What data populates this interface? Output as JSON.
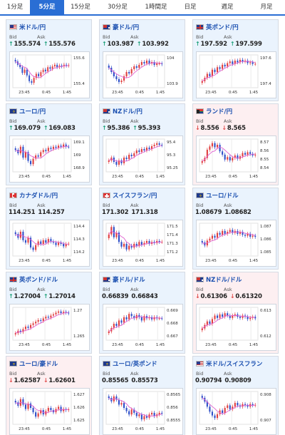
{
  "tabs": [
    "1分足",
    "5分足",
    "15分足",
    "30分足",
    "1時間足",
    "日足",
    "週足",
    "月足"
  ],
  "active_tab": 1,
  "labels": {
    "bid": "Bid",
    "ask": "Ask"
  },
  "colors": {
    "up_arrow": "#1da07a",
    "down_arrow": "#e04848",
    "up_bg": "#eaf3fd",
    "down_bg": "#fdeff1",
    "accent": "#2a6ed4",
    "candle_up": "#e04040",
    "candle_down": "#3050c8",
    "ma_line": "#e060d0"
  },
  "cards": [
    {
      "pair": "米ドル/円",
      "flag": "us",
      "trend": "up",
      "bid": "155.574",
      "ask": "155.576",
      "ticks": [
        "155.6",
        "155.4"
      ],
      "times": [
        "23:45",
        "0:45",
        "1:45"
      ],
      "chart_data": {
        "type": "candlestick",
        "closes": [
          155.62,
          155.58,
          155.55,
          155.48,
          155.52,
          155.45,
          155.38,
          155.36,
          155.42,
          155.47,
          155.44,
          155.49,
          155.52,
          155.5,
          155.55,
          155.53,
          155.56,
          155.58,
          155.55,
          155.57,
          155.56,
          155.58,
          155.57,
          155.575
        ],
        "ylim": [
          155.3,
          155.7
        ]
      }
    },
    {
      "pair": "豪ドル/円",
      "flag": "au",
      "trend": "up",
      "bid": "103.987",
      "ask": "103.992",
      "ticks": [
        "104",
        "103.9"
      ],
      "times": [
        "23:45",
        "0:45",
        "1:45"
      ],
      "chart_data": {
        "type": "candlestick",
        "closes": [
          103.96,
          103.93,
          103.9,
          103.88,
          103.86,
          103.87,
          103.9,
          103.93,
          103.92,
          103.95,
          103.97,
          103.96,
          103.98,
          104.0,
          103.99,
          104.01,
          103.99,
          104.0,
          103.98,
          103.99,
          103.99,
          103.985
        ],
        "ylim": [
          103.82,
          104.05
        ]
      }
    },
    {
      "pair": "英ポンド/円",
      "flag": "gb",
      "trend": "up",
      "bid": "197.592",
      "ask": "197.599",
      "ticks": [
        "197.6",
        "197.4"
      ],
      "times": [
        "23:45",
        "0:45",
        "1:45"
      ],
      "chart_data": {
        "type": "candlestick",
        "closes": [
          197.38,
          197.42,
          197.47,
          197.44,
          197.52,
          197.49,
          197.55,
          197.53,
          197.58,
          197.56,
          197.6,
          197.62,
          197.59,
          197.63,
          197.61,
          197.64,
          197.62,
          197.63,
          197.6,
          197.61,
          197.59,
          197.592
        ],
        "ylim": [
          197.3,
          197.7
        ]
      }
    },
    {
      "pair": "ユーロ/円",
      "flag": "eu",
      "trend": "up",
      "bid": "169.079",
      "ask": "169.083",
      "ticks": [
        "169.1",
        "169",
        "168.9"
      ],
      "times": [
        "23:45",
        "0:45",
        "1:45"
      ],
      "chart_data": {
        "type": "candlestick",
        "closes": [
          169.05,
          169.02,
          169.08,
          168.98,
          169.03,
          168.95,
          168.92,
          168.97,
          169.0,
          168.99,
          169.03,
          169.05,
          169.04,
          169.07,
          169.06,
          169.08,
          169.07,
          169.09,
          169.08,
          169.1,
          169.08,
          169.079
        ],
        "ylim": [
          168.85,
          169.15
        ]
      }
    },
    {
      "pair": "NZドル/円",
      "flag": "nz",
      "trend": "up",
      "bid": "95.386",
      "ask": "95.393",
      "ticks": [
        "95.4",
        "95.3",
        "95.25"
      ],
      "times": [
        "23:45",
        "0:45",
        "1:45"
      ],
      "chart_data": {
        "type": "candlestick",
        "closes": [
          95.28,
          95.3,
          95.27,
          95.25,
          95.28,
          95.26,
          95.3,
          95.29,
          95.32,
          95.31,
          95.33,
          95.35,
          95.34,
          95.36,
          95.35,
          95.37,
          95.36,
          95.38,
          95.39,
          95.4,
          95.39,
          95.386
        ],
        "ylim": [
          95.2,
          95.43
        ]
      }
    },
    {
      "pair": "ランド/円",
      "flag": "za",
      "trend": "down",
      "bid": "8.556",
      "ask": "8.565",
      "ticks": [
        "8.57",
        "8.56",
        "8.55",
        "8.54"
      ],
      "times": [
        "23:45",
        "0:45",
        "1:45"
      ],
      "chart_data": {
        "type": "candlestick",
        "closes": [
          8.548,
          8.552,
          8.562,
          8.566,
          8.57,
          8.565,
          8.568,
          8.56,
          8.556,
          8.55,
          8.553,
          8.549,
          8.552,
          8.555,
          8.551,
          8.554,
          8.558,
          8.556,
          8.559,
          8.557,
          8.555,
          8.556
        ],
        "ylim": [
          8.535,
          8.575
        ]
      }
    },
    {
      "pair": "カナダドル/円",
      "flag": "ca",
      "trend": "none",
      "bid": "114.251",
      "ask": "114.257",
      "ticks": [
        "114.4",
        "114.3",
        "114.2"
      ],
      "times": [
        "23:45",
        "0:45",
        "1:45"
      ],
      "chart_data": {
        "type": "candlestick",
        "closes": [
          114.33,
          114.3,
          114.35,
          114.28,
          114.26,
          114.3,
          114.22,
          114.2,
          114.24,
          114.27,
          114.25,
          114.28,
          114.26,
          114.29,
          114.27,
          114.26,
          114.24,
          114.26,
          114.25,
          114.23,
          114.25,
          114.251
        ],
        "ylim": [
          114.15,
          114.42
        ]
      }
    },
    {
      "pair": "スイスフラン/円",
      "flag": "ch",
      "trend": "none",
      "bid": "171.302",
      "ask": "171.318",
      "ticks": [
        "171.5",
        "171.4",
        "171.3",
        "171.2"
      ],
      "times": [
        "23:45",
        "0:45",
        "1:45"
      ],
      "chart_data": {
        "type": "candlestick",
        "closes": [
          171.38,
          171.46,
          171.35,
          171.4,
          171.3,
          171.25,
          171.28,
          171.22,
          171.26,
          171.24,
          171.28,
          171.26,
          171.3,
          171.27,
          171.29,
          171.31,
          171.28,
          171.3,
          171.29,
          171.31,
          171.3,
          171.302
        ],
        "ylim": [
          171.15,
          171.5
        ]
      }
    },
    {
      "pair": "ユーロ/ドル",
      "flag": "eu",
      "trend": "none",
      "bid": "1.08679",
      "ask": "1.08682",
      "ticks": [
        "1.087",
        "1.086",
        "1.085"
      ],
      "times": [
        "23:45",
        "0:45",
        "1:45"
      ],
      "chart_data": {
        "type": "candlestick",
        "closes": [
          1.0862,
          1.0859,
          1.0864,
          1.0866,
          1.0869,
          1.0867,
          1.0872,
          1.087,
          1.0874,
          1.0871,
          1.0873,
          1.0875,
          1.0872,
          1.0874,
          1.0871,
          1.0873,
          1.087,
          1.0869,
          1.0871,
          1.0868,
          1.0869,
          1.08679
        ],
        "ylim": [
          1.0848,
          1.0882
        ]
      }
    },
    {
      "pair": "英ポンド/ドル",
      "flag": "gb",
      "trend": "up",
      "bid": "1.27004",
      "ask": "1.27014",
      "ticks": [
        "1.27",
        "1.265"
      ],
      "times": [
        "23:45",
        "0:45",
        "1:45"
      ],
      "chart_data": {
        "type": "candlestick",
        "closes": [
          1.2652,
          1.2658,
          1.2655,
          1.2662,
          1.2668,
          1.2665,
          1.2672,
          1.2676,
          1.268,
          1.2684,
          1.2682,
          1.2688,
          1.2692,
          1.269,
          1.2695,
          1.2698,
          1.2702,
          1.2705,
          1.2701,
          1.2704,
          1.2702,
          1.27004
        ],
        "ylim": [
          1.2635,
          1.2715
        ]
      }
    },
    {
      "pair": "豪ドル/ドル",
      "flag": "au",
      "trend": "none",
      "bid": "0.66839",
      "ask": "0.66843",
      "ticks": [
        "0.669",
        "0.668",
        "0.667"
      ],
      "times": [
        "23:45",
        "0:45",
        "1:45"
      ],
      "chart_data": {
        "type": "candlestick",
        "closes": [
          0.6672,
          0.6675,
          0.6679,
          0.6677,
          0.6682,
          0.668,
          0.6685,
          0.6683,
          0.6688,
          0.6686,
          0.6684,
          0.6687,
          0.6685,
          0.6682,
          0.6686,
          0.6684,
          0.6685,
          0.6683,
          0.6685,
          0.6684,
          0.6684,
          0.66839
        ],
        "ylim": [
          0.6664,
          0.6694
        ]
      }
    },
    {
      "pair": "NZドル/ドル",
      "flag": "nz",
      "trend": "down",
      "bid": "0.61306",
      "ask": "0.61320",
      "ticks": [
        "0.613",
        "0.612"
      ],
      "times": [
        "23:45",
        "0:45",
        "1:45"
      ],
      "chart_data": {
        "type": "candlestick",
        "closes": [
          0.6122,
          0.6125,
          0.6128,
          0.6126,
          0.613,
          0.6133,
          0.6131,
          0.6134,
          0.6132,
          0.6135,
          0.6133,
          0.6131,
          0.6133,
          0.6134,
          0.6132,
          0.6131,
          0.6133,
          0.6132,
          0.613,
          0.6131,
          0.6132,
          0.61306
        ],
        "ylim": [
          0.6112,
          0.614
        ]
      }
    },
    {
      "pair": "ユーロ/豪ドル",
      "flag": "eu",
      "trend": "down",
      "bid": "1.62587",
      "ask": "1.62601",
      "ticks": [
        "1.627",
        "1.626",
        "1.625"
      ],
      "times": [
        "23:45",
        "0:45",
        "1:45"
      ],
      "chart_data": {
        "type": "candlestick",
        "closes": [
          1.6265,
          1.6262,
          1.6268,
          1.6263,
          1.6259,
          1.6264,
          1.626,
          1.6256,
          1.6252,
          1.6255,
          1.6258,
          1.6254,
          1.6257,
          1.626,
          1.6258,
          1.6256,
          1.6259,
          1.6261,
          1.6257,
          1.6259,
          1.6258,
          1.62587
        ],
        "ylim": [
          1.6245,
          1.6275
        ]
      }
    },
    {
      "pair": "ユーロ/英ポンド",
      "flag": "eu",
      "trend": "none",
      "bid": "0.85565",
      "ask": "0.85573",
      "ticks": [
        "0.8565",
        "0.856",
        "0.8555"
      ],
      "times": [
        "23:45",
        "0:45",
        "1:45"
      ],
      "chart_data": {
        "type": "candlestick",
        "closes": [
          0.8566,
          0.8564,
          0.8567,
          0.8565,
          0.8562,
          0.8563,
          0.856,
          0.8558,
          0.8556,
          0.8559,
          0.8557,
          0.8555,
          0.8556,
          0.8553,
          0.8555,
          0.8554,
          0.8556,
          0.8557,
          0.8555,
          0.8556,
          0.8557,
          0.85565
        ],
        "ylim": [
          0.855,
          0.857
        ]
      }
    },
    {
      "pair": "米ドル/スイスフラン",
      "flag": "us",
      "trend": "none",
      "bid": "0.90794",
      "ask": "0.90809",
      "ticks": [
        "0.908",
        "0.907"
      ],
      "times": [
        "23:45",
        "0:45",
        "1:45"
      ],
      "chart_data": {
        "type": "candlestick",
        "closes": [
          0.9085,
          0.9082,
          0.9078,
          0.9074,
          0.9071,
          0.9069,
          0.9072,
          0.9075,
          0.9073,
          0.9077,
          0.9079,
          0.9076,
          0.9078,
          0.9081,
          0.9079,
          0.9078,
          0.908,
          0.9079,
          0.9078,
          0.908,
          0.9079,
          0.90794
        ],
        "ylim": [
          0.9064,
          0.909
        ]
      }
    }
  ]
}
